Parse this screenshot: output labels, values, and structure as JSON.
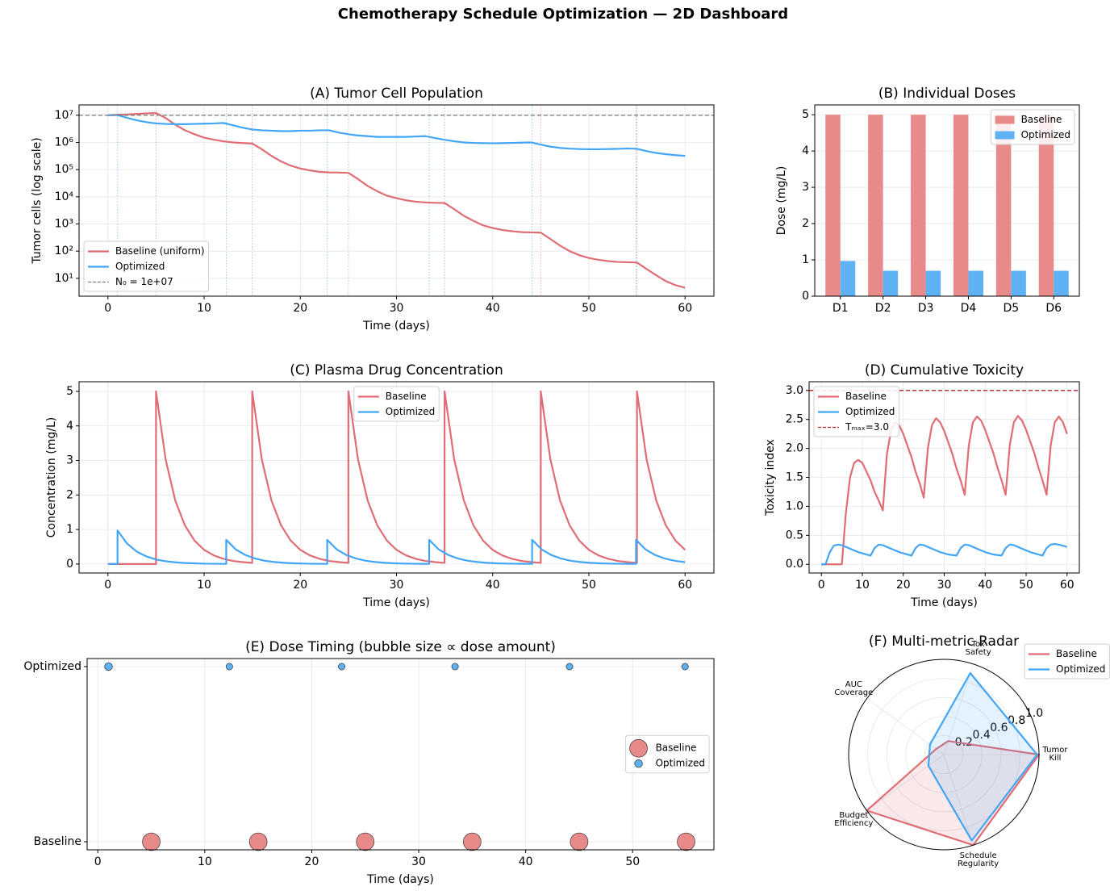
{
  "title": "Chemotherapy Schedule Optimization — 2D Dashboard",
  "chart_data": [
    {
      "type": "line",
      "title": "(A) Tumor Cell Population",
      "x_label": "Time (days)",
      "y_label": "Tumor cells (log scale)",
      "log_y": true,
      "grid": true,
      "legend": "lower left",
      "xlim": [
        -3,
        63
      ],
      "xticks": [
        0,
        10,
        20,
        30,
        40,
        50,
        60
      ],
      "ylim": [
        2.2,
        24000000
      ],
      "yticks": [
        {
          "value": 10,
          "label": "10¹"
        },
        {
          "value": 100,
          "label": "10²"
        },
        {
          "value": 1000,
          "label": "10³"
        },
        {
          "value": 10000,
          "label": "10⁴"
        },
        {
          "value": 100000,
          "label": "10⁵"
        },
        {
          "value": 1000000,
          "label": "10⁶"
        },
        {
          "value": 10000000,
          "label": "10⁷"
        }
      ],
      "x": [
        0,
        1,
        2,
        3,
        4,
        5,
        6,
        7,
        8,
        9,
        10,
        11,
        12,
        13,
        14,
        15,
        16,
        17,
        18,
        19,
        20,
        21,
        22,
        23,
        24,
        25,
        26,
        27,
        28,
        29,
        30,
        31,
        32,
        33,
        34,
        35,
        36,
        37,
        38,
        39,
        40,
        41,
        42,
        43,
        44,
        45,
        46,
        47,
        48,
        49,
        50,
        51,
        52,
        53,
        54,
        55,
        56,
        57,
        58,
        59,
        60
      ],
      "series": [
        {
          "name": "Baseline (uniform)",
          "color": "#e06c75",
          "values": [
            10000000.0,
            10500000.0,
            10700000.0,
            11200000.0,
            11700000.0,
            12000000.0,
            7900000.0,
            4500000.0,
            2800000.0,
            2000000.0,
            1500000.0,
            1260000.0,
            1100000.0,
            1000000.0,
            950000.0,
            910000.0,
            560000.0,
            320000.0,
            200000.0,
            140000.0,
            110000.0,
            93000.0,
            83000.0,
            79000.0,
            78000.0,
            76000.0,
            45000.0,
            25000.0,
            16000.0,
            11000.0,
            8900.0,
            7400.0,
            6600.0,
            6200.0,
            6000.0,
            5900.0,
            3500.0,
            2000.0,
            1300.0,
            890.0,
            710.0,
            600.0,
            540.0,
            500.0,
            490.0,
            480.0,
            280.0,
            160.0,
            100.0,
            71,
            56,
            48,
            43,
            40,
            39,
            38,
            22,
            13,
            7.9,
            5.6,
            4.5
          ]
        },
        {
          "name": "Optimized",
          "color": "#42a5f5",
          "values": [
            10000000.0,
            10200000.0,
            8000000.0,
            6500000.0,
            5600000.0,
            5000000.0,
            4800000.0,
            4700000.0,
            4700000.0,
            4800000.0,
            4900000.0,
            5000000.0,
            5200000.0,
            4300000.0,
            3500000.0,
            3000000.0,
            2800000.0,
            2700000.0,
            2600000.0,
            2600000.0,
            2700000.0,
            2700000.0,
            2800000.0,
            2800000.0,
            2300000.0,
            2000000.0,
            1800000.0,
            1700000.0,
            1600000.0,
            1600000.0,
            1600000.0,
            1600000.0,
            1650000.0,
            1700000.0,
            1450000.0,
            1250000.0,
            1100000.0,
            1000000.0,
            960000.0,
            940000.0,
            930000.0,
            940000.0,
            960000.0,
            980000.0,
            1000000.0,
            830000.0,
            700000.0,
            630000.0,
            590000.0,
            570000.0,
            560000.0,
            560000.0,
            570000.0,
            580000.0,
            600000.0,
            580000.0,
            480000.0,
            410000.0,
            370000.0,
            340000.0,
            320000.0
          ]
        }
      ],
      "hline": {
        "value": 10000000,
        "label": "N₀ = 1e+07",
        "color": "#808080"
      },
      "vlines": [
        {
          "color": "#e06c75",
          "x": [
            5,
            15,
            25,
            35,
            45,
            55
          ]
        },
        {
          "color": "#42a5f5",
          "x": [
            1,
            12.3,
            22.8,
            33.4,
            44.1,
            54.9
          ]
        }
      ]
    },
    {
      "type": "bar",
      "title": "(B) Individual Doses",
      "y_label": "Dose (mg/L)",
      "grid": true,
      "legend": "upper right",
      "categories": [
        "D1",
        "D2",
        "D3",
        "D4",
        "D5",
        "D6"
      ],
      "ylim": [
        0,
        5.27
      ],
      "yticks": [
        0,
        1,
        2,
        3,
        4,
        5
      ],
      "series": [
        {
          "name": "Baseline",
          "color": "#e88a8a",
          "values": [
            5,
            5,
            5,
            5,
            5,
            5
          ]
        },
        {
          "name": "Optimized",
          "color": "#5eb1f3",
          "values": [
            0.97,
            0.7,
            0.7,
            0.7,
            0.7,
            0.7
          ]
        }
      ]
    },
    {
      "type": "line",
      "title": "(C) Plasma Drug Concentration",
      "x_label": "Time (days)",
      "y_label": "Concentration (mg/L)",
      "grid": true,
      "legend": "upper center",
      "xlim": [
        -3,
        63
      ],
      "xticks": [
        0,
        10,
        20,
        30,
        40,
        50,
        60
      ],
      "ylim": [
        -0.26,
        5.28
      ],
      "yticks": [
        0,
        1,
        2,
        3,
        4,
        5
      ],
      "series": [
        {
          "name": "Baseline",
          "color": "#e06c75",
          "x": [
            0,
            5,
            5,
            6,
            7,
            8,
            9,
            10,
            11,
            12,
            13,
            14,
            15,
            15,
            16,
            17,
            18,
            19,
            20,
            21,
            22,
            23,
            24,
            25,
            25,
            26,
            27,
            28,
            29,
            30,
            31,
            32,
            33,
            34,
            35,
            35,
            36,
            37,
            38,
            39,
            40,
            41,
            42,
            43,
            44,
            45,
            45,
            46,
            47,
            48,
            49,
            50,
            51,
            52,
            53,
            54,
            55,
            55,
            56,
            57,
            58,
            59,
            60
          ],
          "values": [
            0,
            0,
            5,
            3.03,
            1.84,
            1.12,
            0.68,
            0.41,
            0.25,
            0.15,
            0.09,
            0.055,
            0.034,
            5,
            3.03,
            1.84,
            1.12,
            0.68,
            0.41,
            0.25,
            0.15,
            0.09,
            0.055,
            0.034,
            5,
            3.03,
            1.84,
            1.12,
            0.68,
            0.41,
            0.25,
            0.15,
            0.09,
            0.055,
            0.034,
            5,
            3.03,
            1.84,
            1.12,
            0.68,
            0.41,
            0.25,
            0.15,
            0.09,
            0.055,
            0.034,
            5,
            3.03,
            1.84,
            1.12,
            0.68,
            0.41,
            0.25,
            0.15,
            0.09,
            0.055,
            0.034,
            5,
            3.03,
            1.84,
            1.12,
            0.68,
            0.41
          ]
        },
        {
          "name": "Optimized",
          "color": "#42a5f5",
          "x": [
            0,
            1,
            1,
            2,
            3,
            4,
            5,
            6,
            7,
            8,
            9,
            10,
            11,
            12.3,
            12.3,
            13.3,
            14.3,
            15.3,
            16.3,
            17.3,
            18.3,
            19.3,
            20.3,
            21.3,
            22.8,
            22.8,
            23.8,
            24.8,
            25.8,
            26.8,
            27.8,
            28.8,
            29.8,
            30.8,
            31.8,
            32.8,
            33.4,
            33.4,
            34.4,
            35.4,
            36.4,
            37.4,
            38.4,
            39.4,
            40.4,
            41.4,
            42.4,
            43.4,
            44.1,
            44.1,
            45.1,
            46.1,
            47.1,
            48.1,
            49.1,
            50.1,
            51.1,
            52.1,
            53.1,
            54.1,
            54.9,
            54.9,
            55.9,
            56.9,
            57.9,
            58.9,
            59.9,
            60
          ],
          "values": [
            0,
            0,
            0.97,
            0.59,
            0.36,
            0.22,
            0.13,
            0.08,
            0.05,
            0.03,
            0.02,
            0.01,
            0.007,
            0.004,
            0.7,
            0.42,
            0.26,
            0.16,
            0.095,
            0.058,
            0.035,
            0.021,
            0.013,
            0.008,
            0.004,
            0.7,
            0.42,
            0.26,
            0.16,
            0.095,
            0.058,
            0.035,
            0.021,
            0.013,
            0.008,
            0.005,
            0.004,
            0.7,
            0.42,
            0.26,
            0.16,
            0.095,
            0.058,
            0.035,
            0.021,
            0.013,
            0.008,
            0.005,
            0.004,
            0.7,
            0.42,
            0.26,
            0.16,
            0.095,
            0.058,
            0.035,
            0.021,
            0.013,
            0.008,
            0.005,
            0.004,
            0.7,
            0.42,
            0.26,
            0.16,
            0.095,
            0.058,
            0.055
          ]
        }
      ]
    },
    {
      "type": "line",
      "title": "(D) Cumulative Toxicity",
      "x_label": "Time (days)",
      "y_label": "Toxicity index",
      "grid": true,
      "legend": "upper left",
      "xlim": [
        -3,
        63
      ],
      "xticks": [
        0,
        10,
        20,
        30,
        40,
        50,
        60
      ],
      "ylim": [
        -0.15,
        3.15
      ],
      "yticks": [
        {
          "value": 0,
          "label": "0.0"
        },
        0.5,
        {
          "value": 1,
          "label": "1.0"
        },
        1.5,
        {
          "value": 2,
          "label": "2.0"
        },
        2.5,
        {
          "value": 3,
          "label": "3.0"
        }
      ],
      "x": [
        0,
        1,
        2,
        3,
        4,
        5,
        6,
        7,
        8,
        9,
        10,
        11,
        12,
        13,
        14,
        15,
        16,
        17,
        18,
        19,
        20,
        21,
        22,
        23,
        24,
        25,
        26,
        27,
        28,
        29,
        30,
        31,
        32,
        33,
        34,
        35,
        36,
        37,
        38,
        39,
        40,
        41,
        42,
        43,
        44,
        45,
        46,
        47,
        48,
        49,
        50,
        51,
        52,
        53,
        54,
        55,
        56,
        57,
        58,
        59,
        60
      ],
      "series": [
        {
          "name": "Baseline",
          "color": "#e06c75",
          "values": [
            0,
            0,
            0,
            0,
            0,
            0,
            0.9,
            1.5,
            1.75,
            1.8,
            1.75,
            1.6,
            1.45,
            1.25,
            1.1,
            0.93,
            1.9,
            2.3,
            2.45,
            2.4,
            2.25,
            2.05,
            1.85,
            1.6,
            1.4,
            1.15,
            2.0,
            2.4,
            2.52,
            2.45,
            2.3,
            2.1,
            1.9,
            1.65,
            1.45,
            1.2,
            2.05,
            2.45,
            2.55,
            2.48,
            2.32,
            2.12,
            1.92,
            1.67,
            1.45,
            1.2,
            2.05,
            2.45,
            2.56,
            2.48,
            2.32,
            2.12,
            1.92,
            1.67,
            1.45,
            1.2,
            2.05,
            2.45,
            2.55,
            2.45,
            2.25
          ]
        },
        {
          "name": "Optimized",
          "color": "#42a5f5",
          "values": [
            0,
            0,
            0.2,
            0.32,
            0.34,
            0.33,
            0.3,
            0.27,
            0.24,
            0.21,
            0.19,
            0.17,
            0.15,
            0.28,
            0.34,
            0.33,
            0.3,
            0.27,
            0.24,
            0.21,
            0.19,
            0.17,
            0.15,
            0.28,
            0.34,
            0.33,
            0.3,
            0.27,
            0.24,
            0.21,
            0.19,
            0.17,
            0.16,
            0.15,
            0.28,
            0.34,
            0.33,
            0.3,
            0.27,
            0.24,
            0.21,
            0.19,
            0.17,
            0.16,
            0.15,
            0.28,
            0.34,
            0.33,
            0.3,
            0.27,
            0.24,
            0.21,
            0.19,
            0.17,
            0.15,
            0.28,
            0.34,
            0.35,
            0.34,
            0.32,
            0.3
          ]
        }
      ],
      "hline": {
        "value": 3,
        "label": "Tₘₐₓ=3.0",
        "color": "#b22222"
      }
    },
    {
      "type": "scatter",
      "title": "(E) Dose Timing (bubble size ∝ dose amount)",
      "x_label": "Time (days)",
      "grid": true,
      "legend": "center right",
      "categories": [
        "Baseline",
        "Optimized"
      ],
      "xlim": [
        -1,
        57.6
      ],
      "xticks": [
        0,
        10,
        20,
        30,
        40,
        50
      ],
      "series": [
        {
          "name": "Baseline",
          "color": "#e88a8a",
          "x": [
            5,
            15,
            25,
            35,
            45,
            55
          ],
          "sizes": [
            5,
            5,
            5,
            5,
            5,
            5
          ]
        },
        {
          "name": "Optimized",
          "color": "#5eb1f3",
          "x": [
            1,
            12.3,
            22.8,
            33.4,
            44.1,
            54.9
          ],
          "sizes": [
            0.97,
            0.7,
            0.7,
            0.7,
            0.7,
            0.7
          ]
        }
      ]
    },
    {
      "type": "radar",
      "title": "(F) Multi-metric Radar",
      "legend": "outside upper right",
      "categories": [
        "Tumor\nKill",
        "Tox\nSafety",
        "AUC\nCoverage",
        "Budget\nEfficiency",
        "Schedule\nRegularity"
      ],
      "ylim": [
        0,
        1
      ],
      "yticks": [
        0.2,
        0.4,
        0.6,
        0.8,
        {
          "value": 1,
          "label": "1.0"
        }
      ],
      "series": [
        {
          "name": "Baseline",
          "color": "#e06c75",
          "values": [
            1.0,
            0.15,
            0.1,
            1.0,
            1.0
          ]
        },
        {
          "name": "Optimized",
          "color": "#42a5f5",
          "values": [
            0.98,
            0.9,
            0.18,
            0.2,
            0.95
          ]
        }
      ]
    }
  ]
}
